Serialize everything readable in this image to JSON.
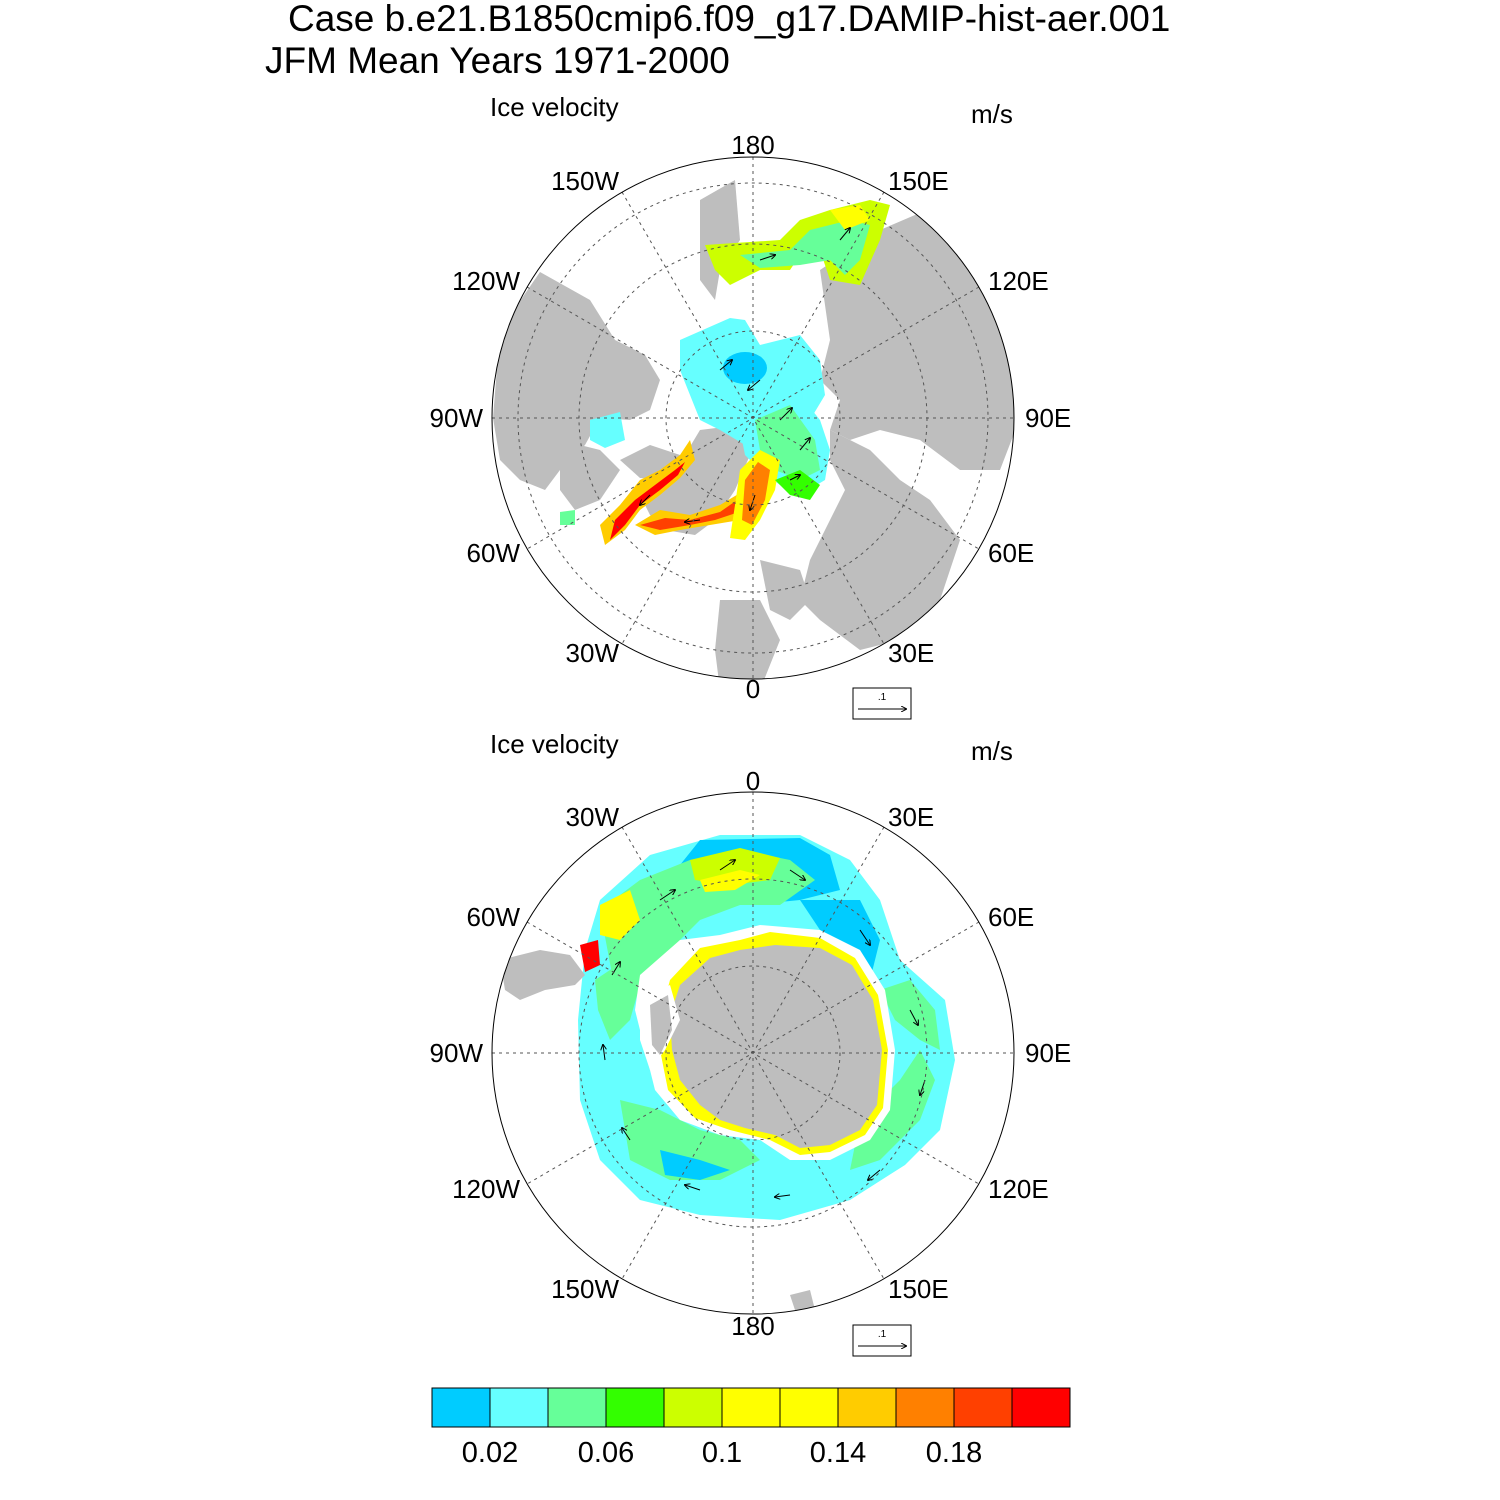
{
  "title": {
    "case": "Case b.e21.B1850cmip6.f09_g17.DAMIP-hist-aer.001",
    "period": "JFM Mean   Years 1971-2000"
  },
  "panels": [
    {
      "id": "north",
      "left_label": "Ice velocity",
      "right_label": "m/s",
      "lon_labels": {
        "top": "180",
        "bottom": "0",
        "left": "90W",
        "right": "90E",
        "upper_left_1": "150W",
        "upper_right_1": "150E",
        "upper_left_2": "120W",
        "upper_right_2": "120E",
        "lower_left_2": "60W",
        "lower_right_2": "60E",
        "lower_left_1": "30W",
        "lower_right_1": "30E"
      },
      "ref_vector_label": ".1"
    },
    {
      "id": "south",
      "left_label": "Ice velocity",
      "right_label": "m/s",
      "lon_labels": {
        "top": "0",
        "bottom": "180",
        "left": "90W",
        "right": "90E",
        "upper_left_1": "30W",
        "upper_right_1": "30E",
        "upper_left_2": "60W",
        "upper_right_2": "60E",
        "lower_left_2": "120W",
        "lower_right_2": "120E",
        "lower_left_1": "150W",
        "lower_right_1": "150E"
      },
      "ref_vector_label": ".1"
    }
  ],
  "colorbar": {
    "colors": [
      "#00ccff",
      "#66ffff",
      "#66ff99",
      "#33ff00",
      "#ccff00",
      "#ffff00",
      "#ffff00",
      "#ffcc00",
      "#ff8000",
      "#ff4000",
      "#ff0000"
    ],
    "labels": [
      "0.02",
      "0.06",
      "0.1",
      "0.14",
      "0.18"
    ]
  },
  "colors": {
    "land": "#bebebe",
    "ocean": "#ffffff",
    "grid": "#555555"
  }
}
